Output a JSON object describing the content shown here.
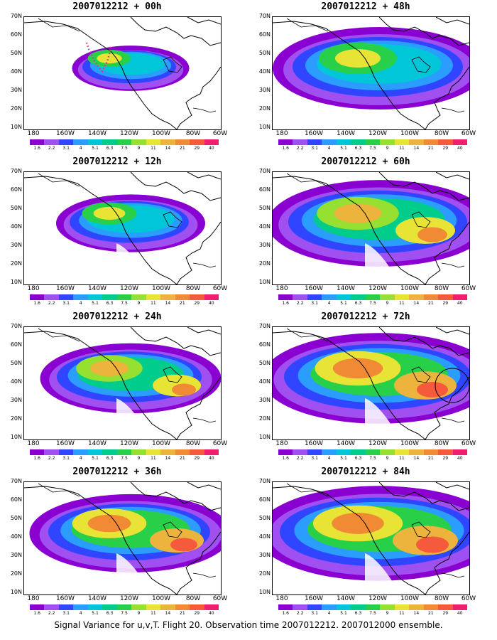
{
  "caption": "Signal Variance for u,v,T. Flight 20. Observation time 2007012212. 2007012000 ensemble.",
  "axes": {
    "lat_labels": [
      "70N",
      "60N",
      "50N",
      "40N",
      "30N",
      "20N",
      "10N"
    ],
    "lon_labels": [
      "180",
      "160W",
      "140W",
      "120W",
      "100W",
      "80W",
      "60W"
    ]
  },
  "colorbar": {
    "levels": [
      "1.6",
      "2.2",
      "3.1",
      "4",
      "5.1",
      "6.3",
      "7.5",
      "9",
      "11",
      "14",
      "21",
      "29",
      "40"
    ],
    "colors": [
      "#8a00d0",
      "#a04ff0",
      "#3045ff",
      "#2a9dff",
      "#00c6d8",
      "#00cc8c",
      "#28d04a",
      "#96e032",
      "#e8e436",
      "#ecb43c",
      "#f08a34",
      "#f55a3c",
      "#f01e6e"
    ]
  },
  "panels": [
    {
      "title": "2007012212 + 00h",
      "lead": "00h"
    },
    {
      "title": "2007012212 + 48h",
      "lead": "48h"
    },
    {
      "title": "2007012212 + 12h",
      "lead": "12h"
    },
    {
      "title": "2007012212 + 60h",
      "lead": "60h"
    },
    {
      "title": "2007012212 + 24h",
      "lead": "24h"
    },
    {
      "title": "2007012212 + 72h",
      "lead": "72h"
    },
    {
      "title": "2007012212 + 36h",
      "lead": "36h"
    },
    {
      "title": "2007012212 + 84h",
      "lead": "84h"
    }
  ]
}
